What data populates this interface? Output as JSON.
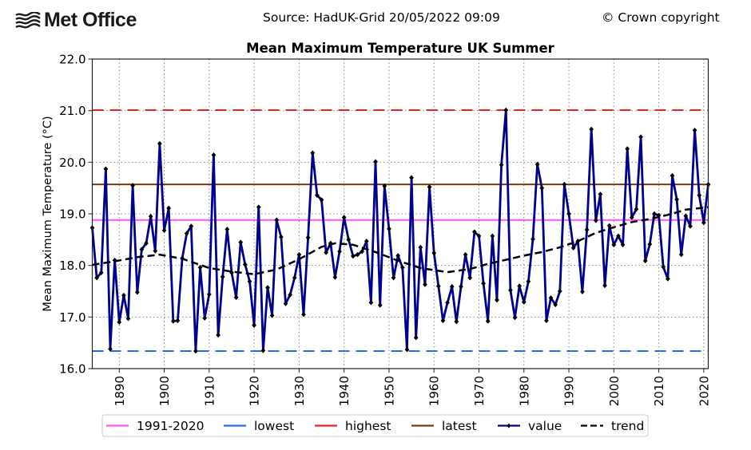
{
  "header": {
    "logo_text": "Met Office",
    "source": "Source: HadUK-Grid 20/05/2022 09:09",
    "copyright": "© Crown copyright"
  },
  "chart_data": {
    "type": "line",
    "title": "Mean Maximum Temperature UK Summer",
    "xlabel": "",
    "ylabel": "Mean Maximum Temperature (°C)",
    "xlim": [
      1884,
      2021
    ],
    "ylim": [
      16.0,
      22.0
    ],
    "grid": true,
    "x_ticks": [
      1890,
      1900,
      1910,
      1920,
      1930,
      1940,
      1950,
      1960,
      1970,
      1980,
      1990,
      2000,
      2010,
      2020
    ],
    "y_ticks": [
      "16.0",
      "17.0",
      "18.0",
      "19.0",
      "20.0",
      "21.0",
      "22.0"
    ],
    "legend_position": "bottom",
    "reference_lines": [
      {
        "name": "1991-2020",
        "value": 18.88,
        "color": "#ff55ff",
        "style": "solid"
      },
      {
        "name": "lowest",
        "value": 16.34,
        "color": "#2a6be5",
        "style": "dashed"
      },
      {
        "name": "highest",
        "value": 21.01,
        "color": "#ee2222",
        "style": "dashed"
      },
      {
        "name": "latest",
        "value": 19.57,
        "color": "#7a3a0a",
        "style": "solid"
      }
    ],
    "series": [
      {
        "name": "value",
        "color": "#00008b",
        "style": "solid-marker",
        "x": [
          1884,
          1885,
          1886,
          1887,
          1888,
          1889,
          1890,
          1891,
          1892,
          1893,
          1894,
          1895,
          1896,
          1897,
          1898,
          1899,
          1900,
          1901,
          1902,
          1903,
          1904,
          1905,
          1906,
          1907,
          1908,
          1909,
          1910,
          1911,
          1912,
          1913,
          1914,
          1915,
          1916,
          1917,
          1918,
          1919,
          1920,
          1921,
          1922,
          1923,
          1924,
          1925,
          1926,
          1927,
          1928,
          1929,
          1930,
          1931,
          1932,
          1933,
          1934,
          1935,
          1936,
          1937,
          1938,
          1939,
          1940,
          1941,
          1942,
          1943,
          1944,
          1945,
          1946,
          1947,
          1948,
          1949,
          1950,
          1951,
          1952,
          1953,
          1954,
          1955,
          1956,
          1957,
          1958,
          1959,
          1960,
          1961,
          1962,
          1963,
          1964,
          1965,
          1966,
          1967,
          1968,
          1969,
          1970,
          1971,
          1972,
          1973,
          1974,
          1975,
          1976,
          1977,
          1978,
          1979,
          1980,
          1981,
          1982,
          1983,
          1984,
          1985,
          1986,
          1987,
          1988,
          1989,
          1990,
          1991,
          1992,
          1993,
          1994,
          1995,
          1996,
          1997,
          1998,
          1999,
          2000,
          2001,
          2002,
          2003,
          2004,
          2005,
          2006,
          2007,
          2008,
          2009,
          2010,
          2011,
          2012,
          2013,
          2014,
          2015,
          2016,
          2017,
          2018,
          2019,
          2020,
          2021
        ],
        "values": [
          18.73,
          17.76,
          17.86,
          19.87,
          16.38,
          18.1,
          16.9,
          17.42,
          16.97,
          19.55,
          17.48,
          18.31,
          18.43,
          18.95,
          18.28,
          20.36,
          18.68,
          19.11,
          16.92,
          16.93,
          18.14,
          18.62,
          18.76,
          16.34,
          17.96,
          16.98,
          17.44,
          20.14,
          16.65,
          17.78,
          18.7,
          17.86,
          17.38,
          18.45,
          18.02,
          17.69,
          16.84,
          19.13,
          16.35,
          17.57,
          17.03,
          18.88,
          18.55,
          17.26,
          17.43,
          17.76,
          18.21,
          17.05,
          18.54,
          20.18,
          19.36,
          19.27,
          18.25,
          18.43,
          17.77,
          18.27,
          18.93,
          18.5,
          18.18,
          18.21,
          18.27,
          18.47,
          17.28,
          20.01,
          17.23,
          19.54,
          18.71,
          17.76,
          18.19,
          17.96,
          16.37,
          19.7,
          16.6,
          18.35,
          17.63,
          19.52,
          18.24,
          17.6,
          16.93,
          17.28,
          17.59,
          16.91,
          17.59,
          18.21,
          17.76,
          18.65,
          18.57,
          17.65,
          16.92,
          18.57,
          17.33,
          19.95,
          21.01,
          17.52,
          16.99,
          17.6,
          17.29,
          17.69,
          18.51,
          19.96,
          19.5,
          16.93,
          17.37,
          17.24,
          17.5,
          19.57,
          19.0,
          18.34,
          18.47,
          17.49,
          18.69,
          20.64,
          18.87,
          19.38,
          17.61,
          18.77,
          18.4,
          18.57,
          18.4,
          20.26,
          18.93,
          19.09,
          20.49,
          18.09,
          18.41,
          19.0,
          18.97,
          17.97,
          17.74,
          19.74,
          19.28,
          18.21,
          18.96,
          18.76,
          20.62,
          19.36,
          18.83,
          19.57
        ]
      },
      {
        "name": "trend",
        "color": "#000000",
        "style": "dashed",
        "x": [
          1884,
          1889,
          1894,
          1899,
          1904,
          1910,
          1915,
          1920,
          1925,
          1930,
          1935,
          1938,
          1942,
          1947,
          1952,
          1957,
          1963,
          1968,
          1972,
          1976,
          1980,
          1984,
          1988,
          1992,
          1996,
          2000,
          2004,
          2008,
          2012,
          2016,
          2021
        ],
        "values": [
          18.01,
          18.08,
          18.16,
          18.21,
          18.13,
          17.95,
          17.88,
          17.83,
          17.92,
          18.12,
          18.36,
          18.43,
          18.4,
          18.26,
          18.09,
          17.95,
          17.87,
          17.93,
          18.03,
          18.11,
          18.19,
          18.26,
          18.35,
          18.47,
          18.63,
          18.74,
          18.84,
          18.9,
          18.98,
          19.08,
          19.13
        ]
      }
    ],
    "legend": [
      {
        "label": "1991-2020",
        "color": "#ff55ff",
        "kind": "solid"
      },
      {
        "label": "lowest",
        "color": "#2a6be5",
        "kind": "solid"
      },
      {
        "label": "highest",
        "color": "#ee2222",
        "kind": "solid"
      },
      {
        "label": "latest",
        "color": "#7a3a0a",
        "kind": "solid"
      },
      {
        "label": "value",
        "color": "#00008b",
        "kind": "marker"
      },
      {
        "label": "trend",
        "color": "#000000",
        "kind": "dashed"
      }
    ]
  }
}
